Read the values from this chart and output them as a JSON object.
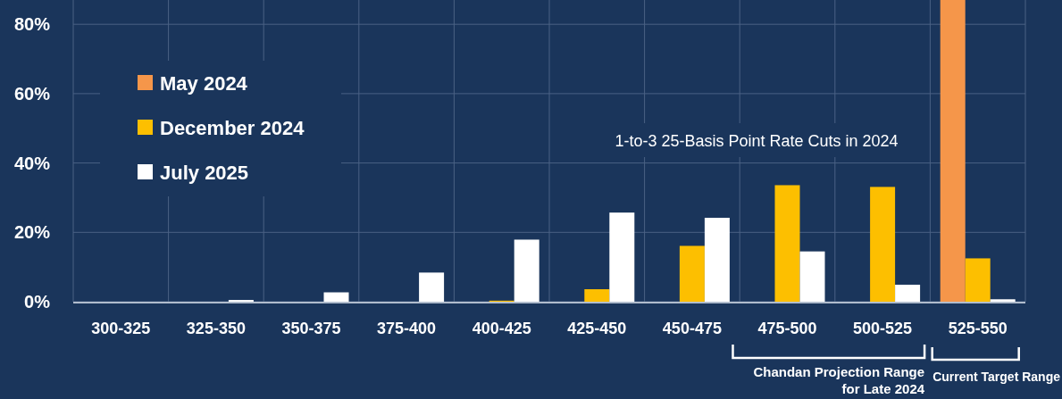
{
  "chart_data": {
    "type": "bar",
    "categories": [
      "300-325",
      "325-350",
      "350-375",
      "375-400",
      "400-425",
      "425-450",
      "450-475",
      "475-500",
      "500-525",
      "525-550"
    ],
    "series": [
      {
        "name": "May 2024",
        "color": "#f5964a",
        "values": [
          0,
          0,
          0,
          0,
          0,
          0,
          0,
          0,
          0,
          87
        ]
      },
      {
        "name": "December 2024",
        "color": "#fdbf00",
        "values": [
          0,
          0,
          0,
          0,
          0.3,
          3.6,
          16.1,
          33.6,
          33.1,
          12.5
        ]
      },
      {
        "name": "July 2025",
        "color": "#ffffff",
        "values": [
          0,
          0.5,
          2.7,
          8.4,
          17.9,
          25.7,
          24.2,
          14.5,
          4.9,
          0.7
        ]
      }
    ],
    "ylim": [
      0,
      87
    ],
    "yticks": [
      {
        "value": 0,
        "label": "0%"
      },
      {
        "value": 20,
        "label": "20%"
      },
      {
        "value": 40,
        "label": "40%"
      },
      {
        "value": 60,
        "label": "60%"
      },
      {
        "value": 80,
        "label": "80%"
      }
    ],
    "grid": true,
    "legend": "top left",
    "annotations": [
      "1-to-3 25-Basis Point Rate Cuts in 2024",
      "Chandan Projection Range\nfor Late 2024",
      "Current Target Range"
    ]
  }
}
